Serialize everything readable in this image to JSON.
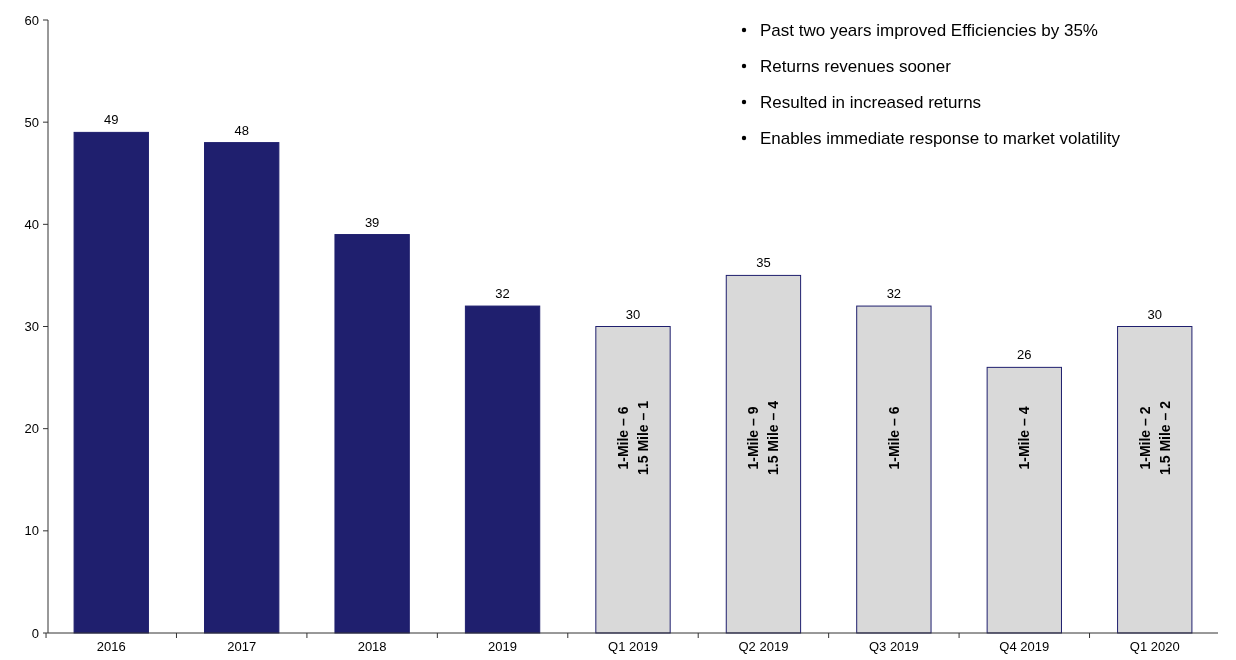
{
  "chart_data": {
    "type": "bar",
    "categories": [
      "2016",
      "2017",
      "2018",
      "2019",
      "Q1 2019",
      "Q2 2019",
      "Q3 2019",
      "Q4 2019",
      "Q1 2020"
    ],
    "values": [
      49,
      48,
      39,
      32,
      30,
      35,
      32,
      26,
      30
    ],
    "colors": [
      "#1f1f6e",
      "#1f1f6e",
      "#1f1f6e",
      "#1f1f6e",
      "#d9d9d9",
      "#d9d9d9",
      "#d9d9d9",
      "#d9d9d9",
      "#d9d9d9"
    ],
    "ylim": [
      0,
      60
    ],
    "yticks": [
      0,
      10,
      20,
      30,
      40,
      50,
      60
    ],
    "grid": false,
    "data_labels": true,
    "annotations": [
      "Past two years improved Efficiencies by 35%",
      "Returns revenues sooner",
      "Resulted in increased returns",
      "Enables immediate response to market volatility",
      "1-Mile – 6\n1.5 Mile – 1",
      "1-Mile – 9\n1.5 Mile – 4",
      "1-Mile – 6",
      "1-Mile – 4",
      "1-Mile – 2\n1.5 Mile – 2"
    ]
  }
}
